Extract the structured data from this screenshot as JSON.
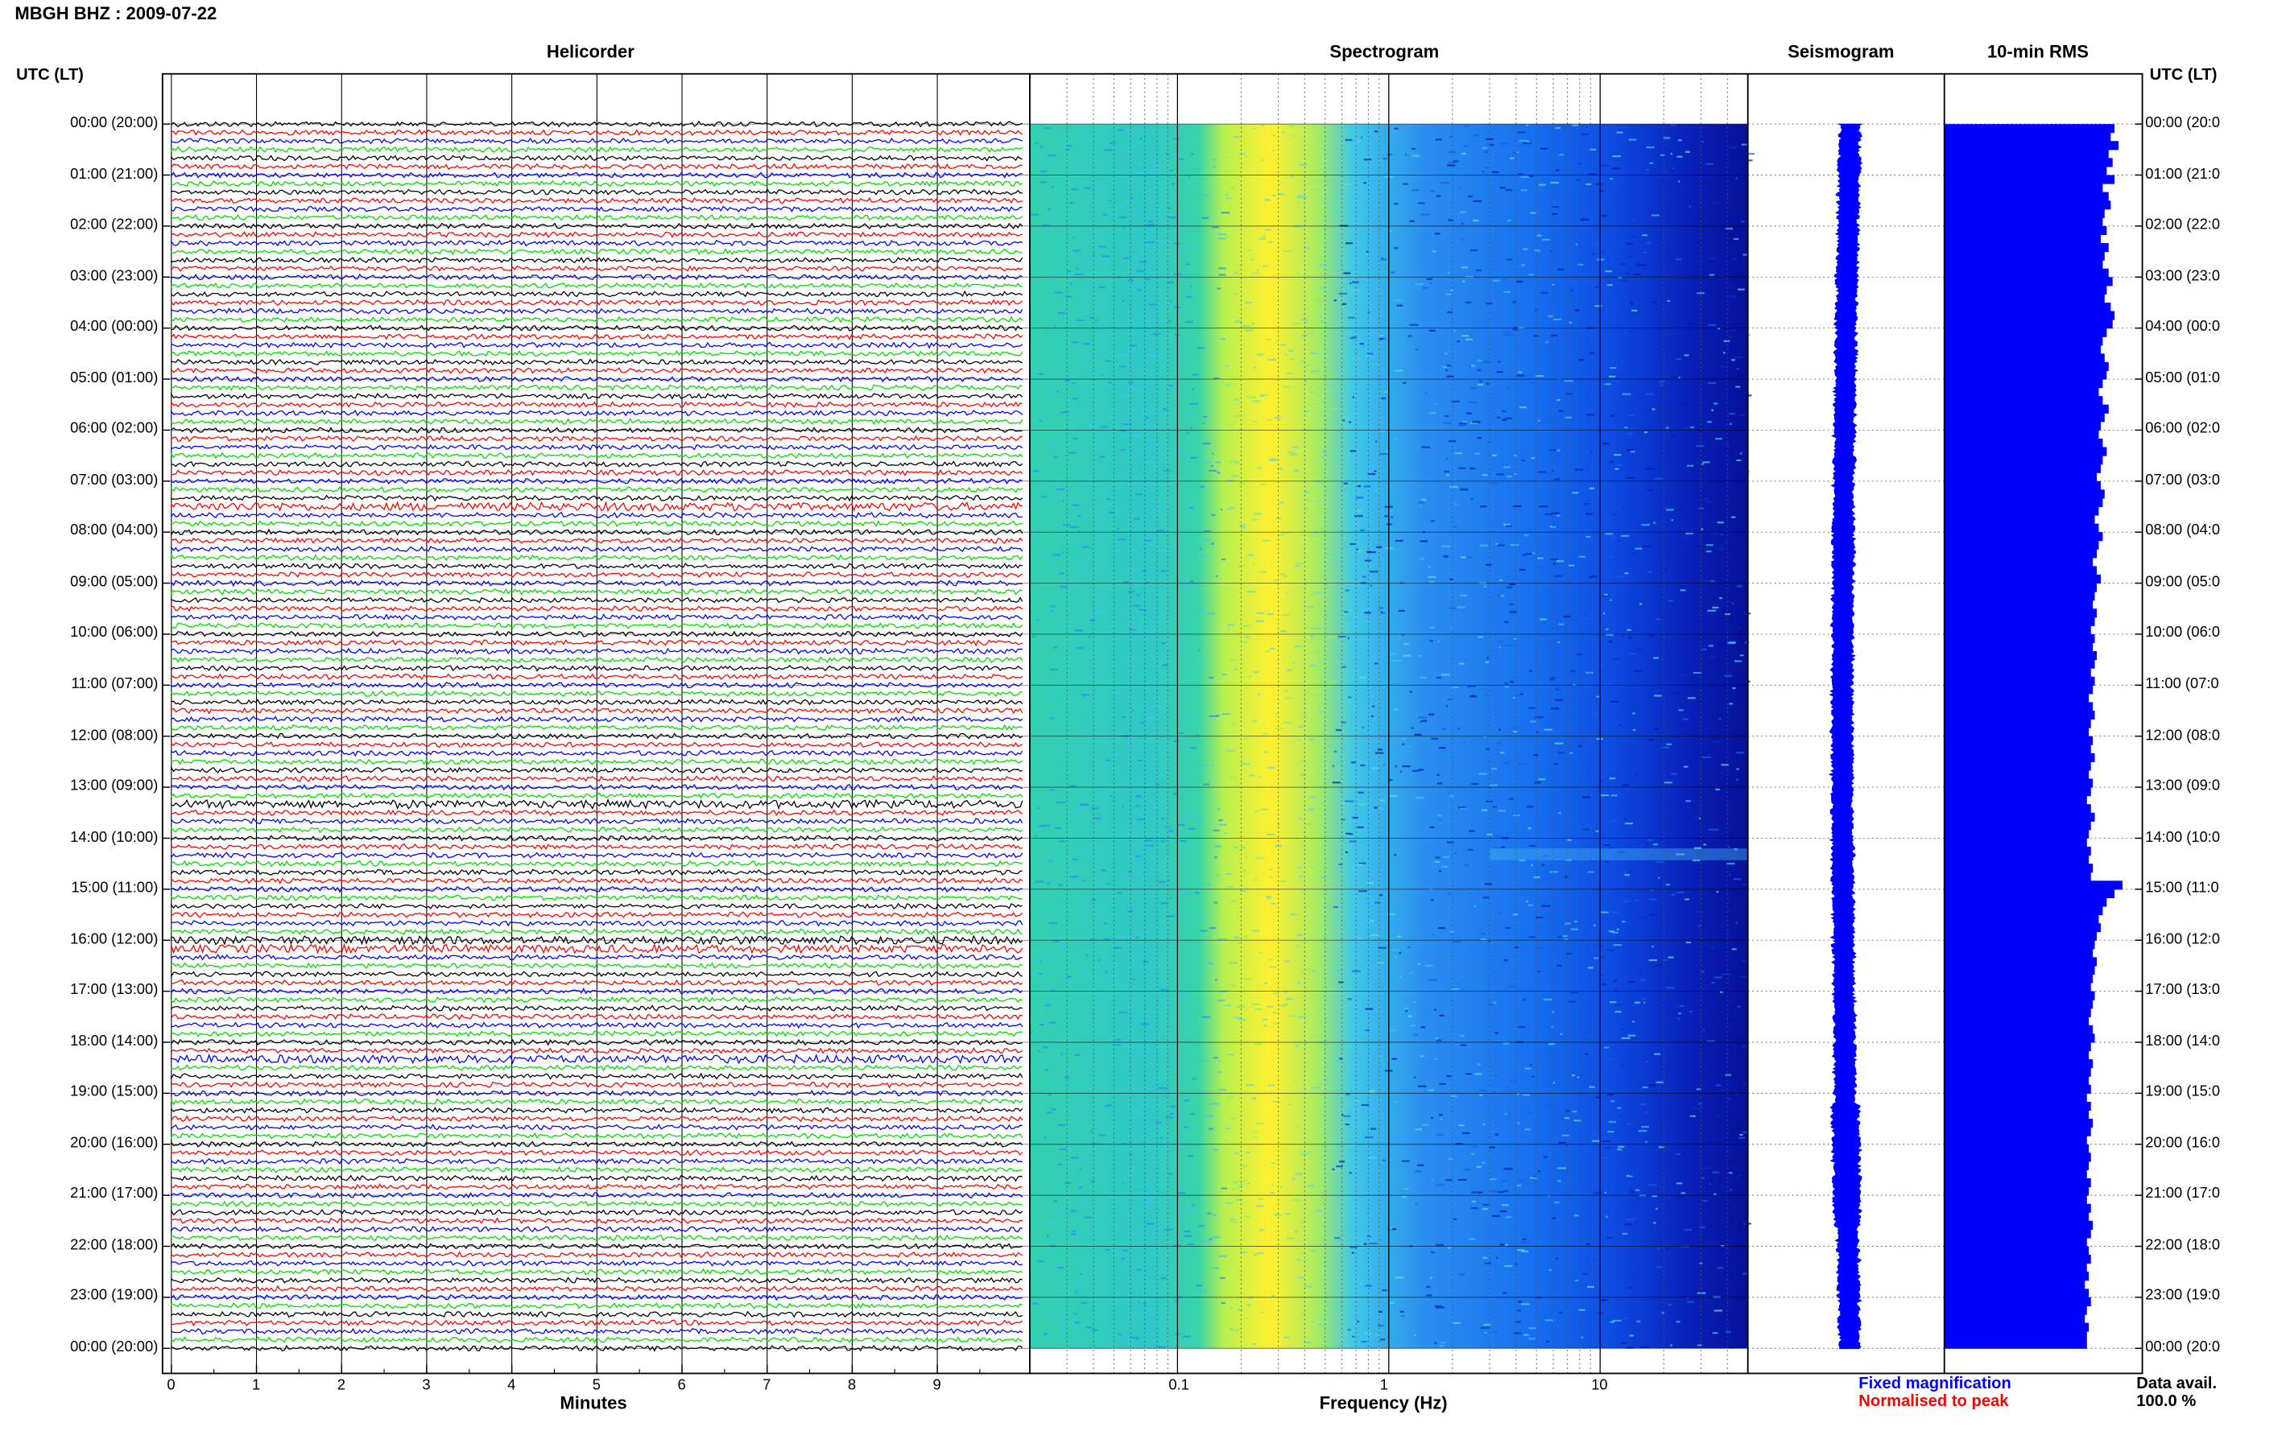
{
  "header": {
    "station_title": "MBGH BHZ : 2009-07-22"
  },
  "axis_labels": {
    "left": "UTC (LT)",
    "right": "UTC (LT)"
  },
  "panels": {
    "helicorder": "Helicorder",
    "spectrogram": "Spectrogram",
    "seismogram": "Seismogram",
    "rms": "10-min RMS"
  },
  "x_labels": {
    "minutes": "Minutes",
    "frequency": "Frequency (Hz)"
  },
  "footer": {
    "fixed": "Fixed magnification",
    "normalised": "Normalised to peak",
    "data_avail_label": "Data avail.",
    "data_avail_value": "100.0 %"
  },
  "colors": {
    "fixed": "#0000ff",
    "normalised": "#ff0000",
    "trace_cycle": [
      "#000000",
      "#ff0000",
      "#0000ff",
      "#00dd00"
    ],
    "rms_fill": "#0000ff"
  },
  "time_labels": [
    "00:00 (20:00)",
    "01:00 (21:00)",
    "02:00 (22:00)",
    "03:00 (23:00)",
    "04:00 (00:00)",
    "05:00 (01:00)",
    "06:00 (02:00)",
    "07:00 (03:00)",
    "08:00 (04:00)",
    "09:00 (05:00)",
    "10:00 (06:00)",
    "11:00 (07:00)",
    "12:00 (08:00)",
    "13:00 (09:00)",
    "14:00 (10:00)",
    "15:00 (11:00)",
    "16:00 (12:00)",
    "17:00 (13:00)",
    "18:00 (14:00)",
    "19:00 (15:00)",
    "20:00 (16:00)",
    "21:00 (17:00)",
    "22:00 (18:00)",
    "23:00 (19:00)",
    "00:00 (20:00)"
  ],
  "time_labels_right": [
    "00:00 (20:0",
    "01:00 (21:0",
    "02:00 (22:0",
    "03:00 (23:0",
    "04:00 (00:0",
    "05:00 (01:0",
    "06:00 (02:0",
    "07:00 (03:0",
    "08:00 (04:0",
    "09:00 (05:0",
    "10:00 (06:0",
    "11:00 (07:0",
    "12:00 (08:0",
    "13:00 (09:0",
    "14:00 (10:0",
    "15:00 (11:0",
    "16:00 (12:0",
    "17:00 (13:0",
    "18:00 (14:0",
    "19:00 (15:0",
    "20:00 (16:0",
    "21:00 (17:0",
    "22:00 (18:0",
    "23:00 (19:0",
    "00:00 (20:0"
  ],
  "chart_data": [
    {
      "type": "line",
      "panel": "Helicorder",
      "xlabel": "Minutes",
      "x_ticks": [
        "0",
        "1",
        "2",
        "3",
        "4",
        "5",
        "6",
        "7",
        "8",
        "9"
      ],
      "xlim": [
        0,
        10
      ],
      "traces_count": 144,
      "trace_duration_minutes": 10,
      "trace_color_cycle": [
        "black",
        "red",
        "blue",
        "green"
      ]
    },
    {
      "type": "heatmap",
      "panel": "Spectrogram",
      "xlabel": "Frequency (Hz)",
      "x_scale": "log",
      "xlim": [
        0.02,
        50
      ],
      "x_ticks": [
        "0.1",
        "1",
        "10"
      ],
      "colormap": "jet",
      "high_band_hz": [
        0.2,
        0.7
      ]
    },
    {
      "type": "line",
      "panel": "Seismogram",
      "series": [
        {
          "name": "Fixed magnification"
        }
      ]
    },
    {
      "type": "bar",
      "panel": "10-min RMS",
      "orientation": "horizontal",
      "bins": 144,
      "relative_values": [
        0.86,
        0.84,
        0.88,
        0.83,
        0.85,
        0.82,
        0.86,
        0.8,
        0.83,
        0.84,
        0.81,
        0.8,
        0.82,
        0.79,
        0.83,
        0.81,
        0.8,
        0.83,
        0.85,
        0.82,
        0.81,
        0.84,
        0.86,
        0.85,
        0.82,
        0.8,
        0.79,
        0.81,
        0.83,
        0.82,
        0.8,
        0.78,
        0.8,
        0.83,
        0.81,
        0.79,
        0.78,
        0.8,
        0.82,
        0.8,
        0.79,
        0.77,
        0.79,
        0.81,
        0.8,
        0.78,
        0.76,
        0.78,
        0.8,
        0.78,
        0.77,
        0.75,
        0.77,
        0.79,
        0.77,
        0.76,
        0.75,
        0.77,
        0.76,
        0.74,
        0.76,
        0.75,
        0.77,
        0.76,
        0.74,
        0.76,
        0.75,
        0.73,
        0.75,
        0.76,
        0.74,
        0.73,
        0.75,
        0.74,
        0.76,
        0.74,
        0.73,
        0.75,
        0.74,
        0.72,
        0.74,
        0.76,
        0.74,
        0.73,
        0.72,
        0.74,
        0.73,
        0.75,
        0.74,
        0.9,
        0.86,
        0.82,
        0.8,
        0.78,
        0.79,
        0.77,
        0.76,
        0.75,
        0.77,
        0.76,
        0.75,
        0.74,
        0.76,
        0.75,
        0.74,
        0.73,
        0.75,
        0.76,
        0.74,
        0.73,
        0.75,
        0.74,
        0.73,
        0.74,
        0.72,
        0.74,
        0.73,
        0.75,
        0.74,
        0.72,
        0.73,
        0.74,
        0.73,
        0.72,
        0.74,
        0.73,
        0.72,
        0.74,
        0.73,
        0.75,
        0.74,
        0.72,
        0.73,
        0.74,
        0.72,
        0.73,
        0.71,
        0.73,
        0.74,
        0.72,
        0.71,
        0.73,
        0.72,
        0.72
      ]
    }
  ]
}
